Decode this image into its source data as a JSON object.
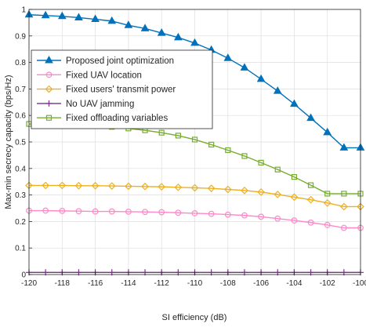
{
  "chart_data": {
    "type": "line",
    "title": "",
    "xlabel": "SI efficiency (dB)",
    "ylabel": "Max-min secrecy capacity (bps/Hz)",
    "xlim": [
      -120,
      -100
    ],
    "ylim": [
      0,
      1
    ],
    "xticks": [
      -120,
      -118,
      -116,
      -114,
      -112,
      -110,
      -108,
      -106,
      -104,
      -102,
      -100
    ],
    "yticks": [
      0,
      0.1,
      0.2,
      0.3,
      0.4,
      0.5,
      0.6,
      0.7,
      0.8,
      0.9,
      1
    ],
    "xtick_labels": [
      "-120",
      "-118",
      "-116",
      "-114",
      "-112",
      "-110",
      "-108",
      "-106",
      "-104",
      "-102",
      "-100"
    ],
    "ytick_labels": [
      "0",
      "0.1",
      "0.2",
      "0.3",
      "0.4",
      "0.5",
      "0.6",
      "0.7",
      "0.8",
      "0.9",
      "1"
    ],
    "grid": true,
    "legend_position": "upper-left",
    "x": [
      -120,
      -119,
      -118,
      -117,
      -116,
      -115,
      -114,
      -113,
      -112,
      -111,
      -110,
      -109,
      -108,
      -107,
      -106,
      -105,
      -104,
      -103,
      -102,
      -101,
      -100
    ],
    "series": [
      {
        "name": "Proposed joint optimization",
        "color": "#0072BD",
        "marker": "triangle",
        "values": [
          0.98,
          0.977,
          0.974,
          0.969,
          0.963,
          0.956,
          0.94,
          0.928,
          0.911,
          0.894,
          0.873,
          0.847,
          0.816,
          0.78,
          0.737,
          0.692,
          0.643,
          0.59,
          0.536,
          0.478,
          0.478
        ]
      },
      {
        "name": "Fixed UAV location",
        "color": "#FF88C8",
        "marker": "circle",
        "values": [
          0.241,
          0.241,
          0.24,
          0.239,
          0.238,
          0.238,
          0.237,
          0.236,
          0.235,
          0.233,
          0.231,
          0.229,
          0.226,
          0.223,
          0.218,
          0.211,
          0.204,
          0.196,
          0.187,
          0.176,
          0.176
        ]
      },
      {
        "name": "Fixed users' transmit power",
        "color": "#EDB120",
        "marker": "diamond",
        "values": [
          0.336,
          0.336,
          0.336,
          0.335,
          0.335,
          0.334,
          0.333,
          0.332,
          0.331,
          0.329,
          0.327,
          0.325,
          0.321,
          0.317,
          0.311,
          0.302,
          0.292,
          0.282,
          0.27,
          0.256,
          0.256
        ]
      },
      {
        "name": "No UAV jamming",
        "color": "#7E2F8E",
        "marker": "plus",
        "values": [
          0.008,
          0.008,
          0.008,
          0.008,
          0.008,
          0.008,
          0.008,
          0.008,
          0.008,
          0.008,
          0.008,
          0.008,
          0.008,
          0.008,
          0.008,
          0.008,
          0.008,
          0.008,
          0.008,
          0.008,
          0.008
        ]
      },
      {
        "name": "Fixed offloading variables",
        "color": "#77AC30",
        "marker": "square",
        "values": [
          0.568,
          0.567,
          0.566,
          0.564,
          0.561,
          0.557,
          0.551,
          0.544,
          0.535,
          0.524,
          0.509,
          0.49,
          0.469,
          0.447,
          0.422,
          0.396,
          0.368,
          0.337,
          0.305,
          0.305,
          0.305
        ]
      }
    ]
  }
}
